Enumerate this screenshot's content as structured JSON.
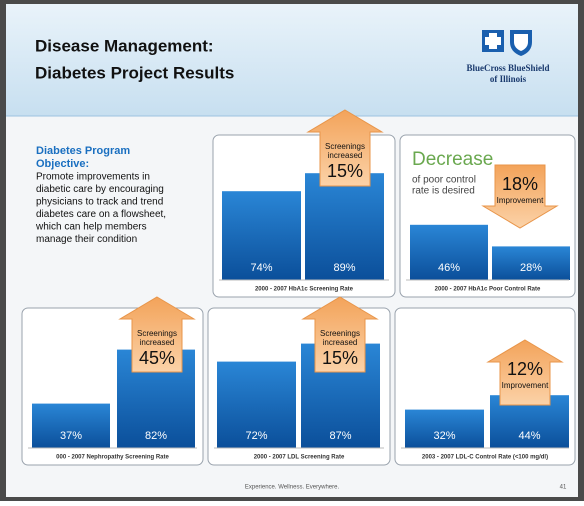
{
  "header": {
    "title_lines": [
      "Disease Management:",
      "Diabetes Project Results"
    ],
    "logo": [
      "BlueCross BlueShield",
      "of Illinois"
    ]
  },
  "objective": {
    "heading_lines": [
      "Diabetes Program",
      "Objective:"
    ],
    "body_lines": [
      "Promote improvements in",
      "diabetic care by encouraging",
      "physicians to track and trend",
      "diabetes care on a flowsheet,",
      "which can help members",
      "manage their condition"
    ]
  },
  "chart_data": [
    {
      "type": "bar",
      "title": "2000 - 2007 HbA1c Screening Rate",
      "values": [
        74,
        89
      ],
      "value_labels": [
        "74%",
        "89%"
      ],
      "color": "#1a6fc0",
      "annotation": {
        "direction": "up",
        "small": [
          "Screenings",
          "increased"
        ],
        "big": "15%"
      }
    },
    {
      "type": "bar",
      "title": "2000 - 2007 HbA1c Poor Control Rate",
      "values": [
        46,
        28
      ],
      "value_labels": [
        "46%",
        "28%"
      ],
      "color": "#1a6fc0",
      "note": {
        "headline": "Decrease",
        "lines": [
          "of poor control",
          "rate is desired"
        ]
      },
      "annotation": {
        "direction": "down",
        "big": "18%",
        "small": [
          "Improvement"
        ]
      }
    },
    {
      "type": "bar",
      "title": "000 - 2007 Nephropathy Screening Rate",
      "values": [
        37,
        82
      ],
      "value_labels": [
        "37%",
        "82%"
      ],
      "color": "#1a6fc0",
      "annotation": {
        "direction": "up",
        "small": [
          "Screenings",
          "increased"
        ],
        "big": "45%"
      }
    },
    {
      "type": "bar",
      "title": "2000 - 2007 LDL Screening Rate",
      "values": [
        72,
        87
      ],
      "value_labels": [
        "72%",
        "87%"
      ],
      "color": "#1a6fc0",
      "annotation": {
        "direction": "up",
        "small": [
          "Screenings",
          "increased"
        ],
        "big": "15%"
      }
    },
    {
      "type": "bar",
      "title": "2003 - 2007 LDL-C Control Rate (<100 mg/dl)",
      "values": [
        32,
        44
      ],
      "value_labels": [
        "32%",
        "44%"
      ],
      "color": "#1a6fc0",
      "annotation": {
        "direction": "up",
        "big": "12%",
        "small": [
          "Improvement"
        ]
      }
    }
  ],
  "footer": {
    "tagline": "Experience. Wellness. Everywhere.",
    "page": "41"
  }
}
